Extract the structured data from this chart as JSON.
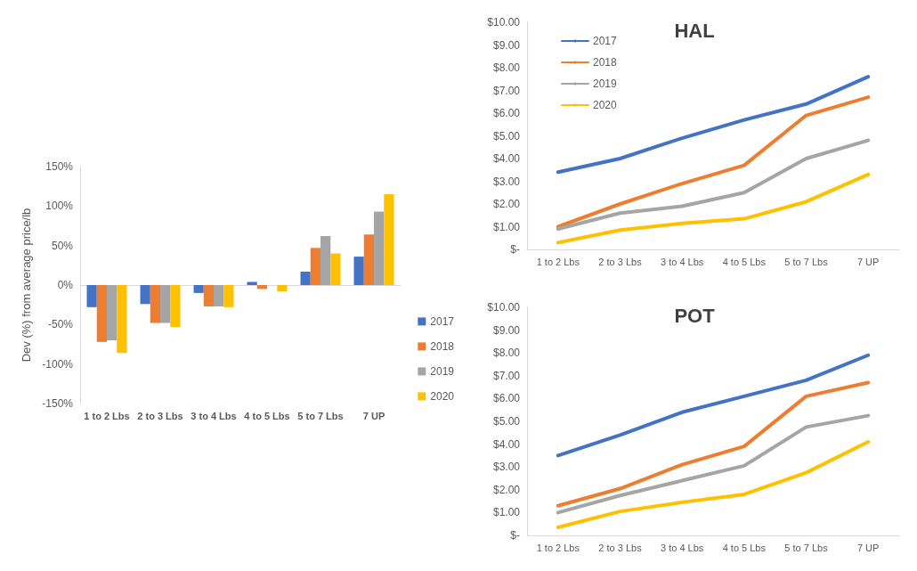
{
  "chart_data": [
    {
      "type": "bar",
      "ylabel": "Dev (%) from average price/lb",
      "categories": [
        "1 to 2 Lbs",
        "2 to 3 Lbs",
        "3 to 4 Lbs",
        "4 to 5 Lbs",
        "5 to 7 Lbs",
        "7 UP"
      ],
      "series": [
        {
          "name": "2017",
          "color": "#4472c4",
          "values": [
            -28,
            -24,
            -10,
            4,
            17,
            36
          ]
        },
        {
          "name": "2018",
          "color": "#ed7d31",
          "values": [
            -72,
            -48,
            -27,
            -5,
            47,
            64
          ]
        },
        {
          "name": "2019",
          "color": "#a5a5a5",
          "values": [
            -70,
            -48,
            -27,
            null,
            62,
            93
          ]
        },
        {
          "name": "2020",
          "color": "#ffc000",
          "values": [
            -86,
            -53,
            -28,
            -8,
            40,
            115
          ]
        }
      ],
      "ylim": [
        -150,
        150
      ],
      "yticks": [
        {
          "value": -150,
          "label": "-150%"
        },
        {
          "value": -100,
          "label": "-100%"
        },
        {
          "value": -50,
          "label": "-50%"
        },
        {
          "value": 0,
          "label": "0%"
        },
        {
          "value": 50,
          "label": "50%"
        },
        {
          "value": 100,
          "label": "100%"
        },
        {
          "value": 150,
          "label": "150%"
        }
      ],
      "legend": "right"
    },
    {
      "type": "line",
      "title": "HAL",
      "categories": [
        "1 to 2 Lbs",
        "2 to 3 Lbs",
        "3 to 4 Lbs",
        "4 to 5 Lbs",
        "5 to 7 Lbs",
        "7 UP"
      ],
      "series": [
        {
          "name": "2017",
          "color": "#4472c4",
          "values": [
            3.4,
            4.0,
            4.9,
            5.7,
            6.4,
            7.6
          ]
        },
        {
          "name": "2018",
          "color": "#ed7d31",
          "values": [
            1.0,
            2.0,
            2.9,
            3.7,
            5.9,
            6.7
          ]
        },
        {
          "name": "2019",
          "color": "#a5a5a5",
          "values": [
            0.9,
            1.6,
            1.9,
            2.5,
            4.0,
            4.8
          ]
        },
        {
          "name": "2020",
          "color": "#ffc000",
          "values": [
            0.3,
            0.85,
            1.15,
            1.35,
            2.1,
            3.3
          ]
        }
      ],
      "ylim": [
        0,
        10
      ],
      "yticks": [
        {
          "value": 0,
          "label": "$-"
        },
        {
          "value": 1,
          "label": "$1.00"
        },
        {
          "value": 2,
          "label": "$2.00"
        },
        {
          "value": 3,
          "label": "$3.00"
        },
        {
          "value": 4,
          "label": "$4.00"
        },
        {
          "value": 5,
          "label": "$5.00"
        },
        {
          "value": 6,
          "label": "$6.00"
        },
        {
          "value": 7,
          "label": "$7.00"
        },
        {
          "value": 8,
          "label": "$8.00"
        },
        {
          "value": 9,
          "label": "$9.00"
        },
        {
          "value": 10,
          "label": "$10.00"
        }
      ],
      "legend": "top left",
      "marker": "none"
    },
    {
      "type": "line",
      "title": "POT",
      "categories": [
        "1 to 2 Lbs",
        "2 to 3 Lbs",
        "3 to 4 Lbs",
        "4 to 5 Lbs",
        "5 to 7 Lbs",
        "7 UP"
      ],
      "series": [
        {
          "color": "#4472c4",
          "values": [
            3.5,
            4.4,
            5.4,
            6.1,
            6.8,
            7.9
          ]
        },
        {
          "color": "#ed7d31",
          "values": [
            1.3,
            2.05,
            3.1,
            3.9,
            6.1,
            6.7
          ]
        },
        {
          "color": "#a5a5a5",
          "values": [
            1.0,
            1.75,
            2.4,
            3.05,
            4.75,
            5.25
          ]
        },
        {
          "color": "#ffc000",
          "values": [
            0.35,
            1.05,
            1.45,
            1.8,
            2.75,
            4.1
          ]
        }
      ],
      "ylim": [
        0,
        10
      ],
      "yticks": [
        {
          "value": 0,
          "label": "$-"
        },
        {
          "value": 1,
          "label": "$1.00"
        },
        {
          "value": 2,
          "label": "$2.00"
        },
        {
          "value": 3,
          "label": "$3.00"
        },
        {
          "value": 4,
          "label": "$4.00"
        },
        {
          "value": 5,
          "label": "$5.00"
        },
        {
          "value": 6,
          "label": "$6.00"
        },
        {
          "value": 7,
          "label": "$7.00"
        },
        {
          "value": 8,
          "label": "$8.00"
        },
        {
          "value": 9,
          "label": "$9.00"
        },
        {
          "value": 10,
          "label": "$10.00"
        }
      ],
      "legend": false,
      "marker": "none"
    }
  ]
}
